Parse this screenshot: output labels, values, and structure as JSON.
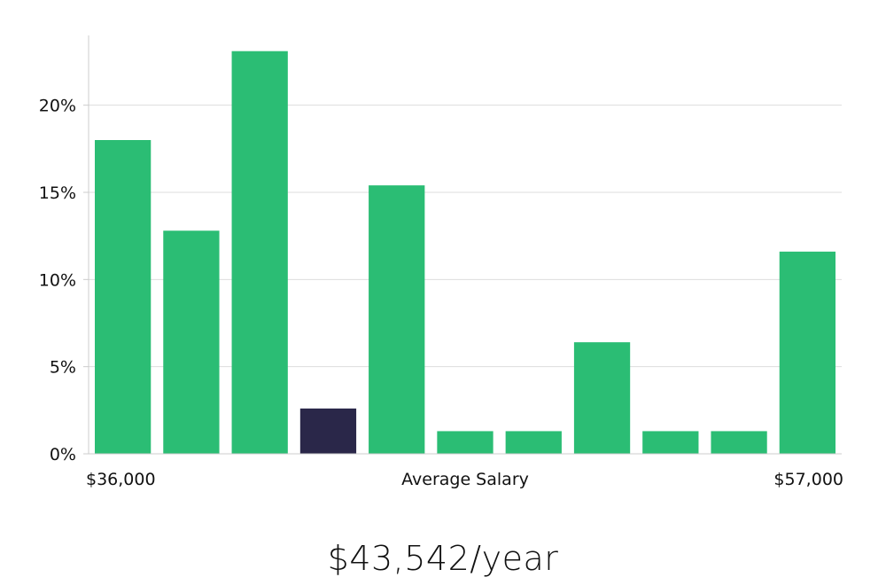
{
  "chart_data": {
    "type": "bar",
    "title": "",
    "xlabel": "Average Salary",
    "x_range_labels": {
      "min": "$36,000",
      "max": "$57,000"
    },
    "ylabel": "",
    "ylim": [
      0,
      24
    ],
    "yticks": [
      0,
      5,
      10,
      15,
      20
    ],
    "ytick_labels": [
      "0%",
      "5%",
      "10%",
      "15%",
      "20%"
    ],
    "grid": true,
    "values": [
      18.0,
      12.8,
      23.1,
      2.6,
      15.4,
      1.3,
      1.3,
      6.4,
      1.3,
      1.3,
      11.6
    ],
    "highlight_index": 3,
    "colors": {
      "bar": "#2bbd74",
      "highlight": "#2a2749",
      "grid": "#dddddd",
      "axis": "#cccccc"
    }
  },
  "footer": {
    "salary_text": "$43,542/year"
  }
}
